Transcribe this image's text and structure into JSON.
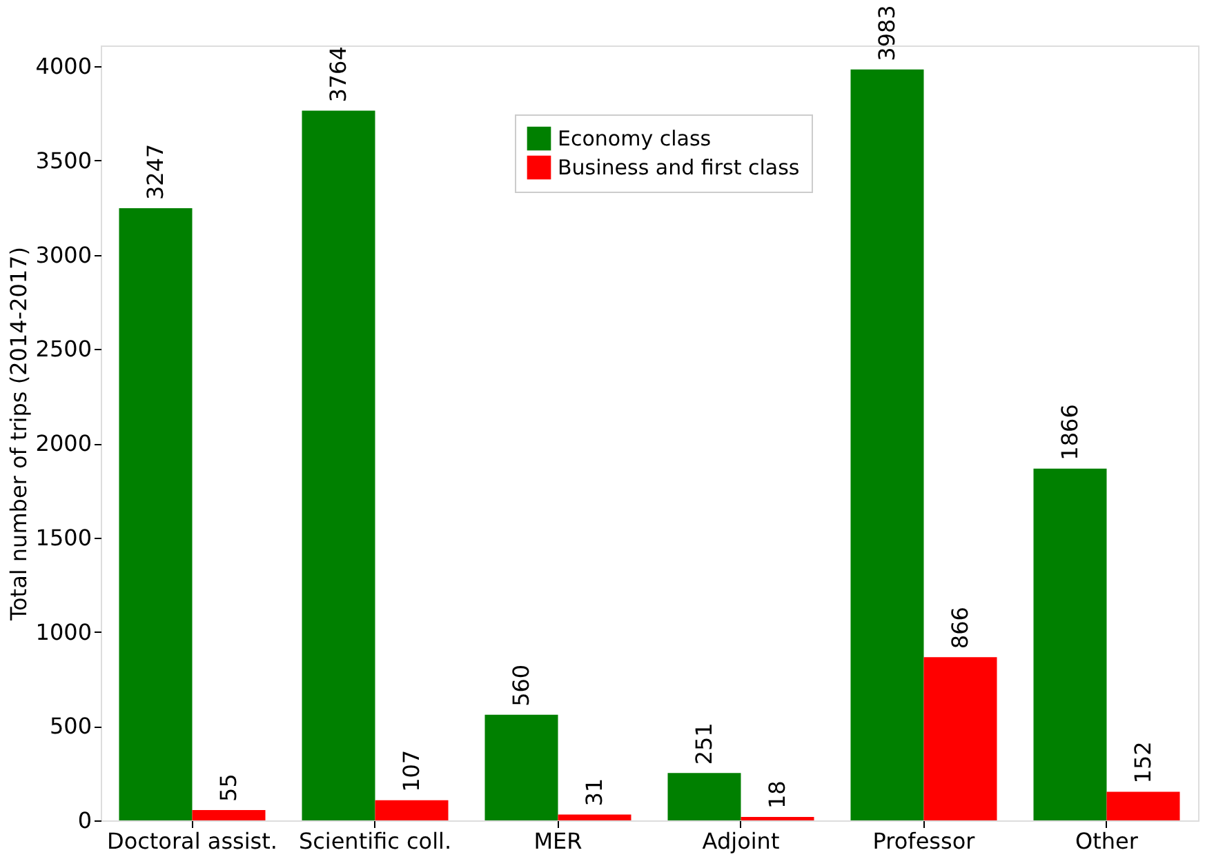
{
  "chart_data": {
    "type": "bar",
    "ylabel": "Total number of trips (2014-2017)",
    "categories": [
      "Doctoral assist.",
      "Scientific coll.",
      "MER",
      "Adjoint",
      "Professor",
      "Other"
    ],
    "series": [
      {
        "name": "Economy class",
        "color": "#008000",
        "values": [
          3247,
          3764,
          560,
          251,
          3983,
          1866
        ]
      },
      {
        "name": "Business and first class",
        "color": "#ff0000",
        "values": [
          55,
          107,
          31,
          18,
          866,
          152
        ]
      }
    ],
    "ylim": [
      0,
      4110
    ],
    "yticks": [
      0,
      500,
      1000,
      1500,
      2000,
      2500,
      3000,
      3500,
      4000
    ],
    "data_labels": true,
    "legend": "top",
    "grid": false
  }
}
